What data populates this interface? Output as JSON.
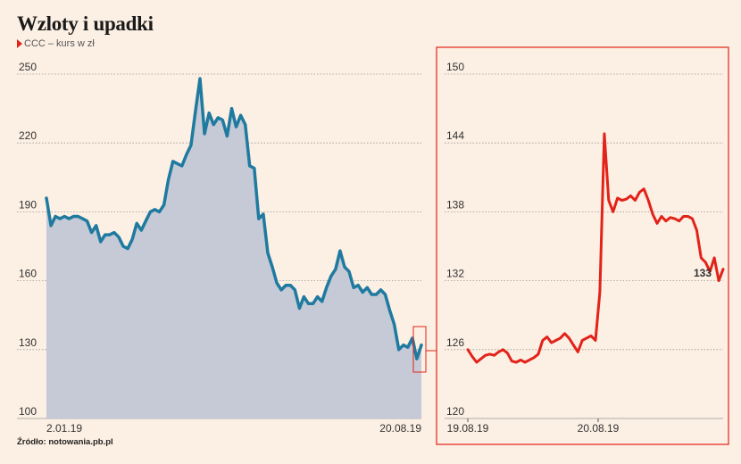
{
  "header": {
    "title": "Wzloty i upadki",
    "subtitle": "CCC – kurs w zł",
    "source": "Źródło: notowania.pb.pl"
  },
  "colors": {
    "background": "#fcefe3",
    "main_line": "#1f7aa0",
    "main_fill": "#c5cad6",
    "detail_line": "#e2231a",
    "frame": "#e2231a"
  },
  "chart_data": [
    {
      "type": "area",
      "title": "CCC – kurs w zł",
      "ylim": [
        100,
        250
      ],
      "yticks": [
        100,
        130,
        160,
        190,
        220,
        250
      ],
      "x_start_label": "2.01.19",
      "x_end_label": "20.08.19",
      "grid": true,
      "series": [
        {
          "values": [
            196,
            184,
            188,
            187,
            188,
            187,
            188,
            188,
            187,
            186,
            181,
            184,
            177,
            180,
            180,
            181,
            179,
            175,
            174,
            178,
            185,
            182,
            186,
            190,
            191,
            190,
            193,
            204,
            212,
            211,
            210,
            215,
            219,
            234,
            248,
            224,
            233,
            228,
            231,
            230,
            223,
            235,
            227,
            232,
            228,
            210,
            209,
            187,
            189,
            172,
            166,
            159,
            156,
            158,
            158,
            156,
            148,
            153,
            150,
            150,
            153,
            151,
            157,
            162,
            165,
            173,
            166,
            164,
            157,
            158,
            155,
            157,
            154,
            154,
            156,
            154,
            147,
            141,
            130,
            132,
            131,
            135,
            126,
            132
          ]
        }
      ]
    },
    {
      "type": "line",
      "ylim": [
        120,
        150
      ],
      "yticks": [
        120,
        126,
        132,
        138,
        144,
        150
      ],
      "x_labels": [
        "19.08.19",
        "20.08.19"
      ],
      "annotation": "133",
      "grid": true,
      "series": [
        {
          "values": [
            126.0,
            125.4,
            124.9,
            125.2,
            125.5,
            125.6,
            125.5,
            125.8,
            126.0,
            125.7,
            125.0,
            124.9,
            125.1,
            124.9,
            125.1,
            125.3,
            125.6,
            126.8,
            127.1,
            126.6,
            126.8,
            127.0,
            127.4,
            127.0,
            126.4,
            125.8,
            126.8,
            127.0,
            127.2,
            126.8,
            131.0,
            144.8,
            139.0,
            138.0,
            139.2,
            139.0,
            139.1,
            139.4,
            139.0,
            139.7,
            140.0,
            139.0,
            137.8,
            137.0,
            137.6,
            137.2,
            137.5,
            137.4,
            137.2,
            137.6,
            137.6,
            137.4,
            136.4,
            134.0,
            133.6,
            132.8,
            134.0,
            132.0,
            133.0
          ]
        }
      ]
    }
  ]
}
